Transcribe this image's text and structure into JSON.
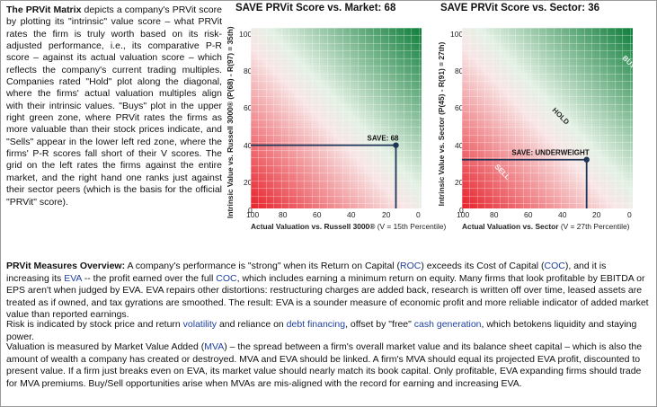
{
  "intro": {
    "heading": "The PRVit Matrix",
    "text": " depicts a company's PRVit score by plotting its \"intrinsic\" value score – what PRVit rates the firm is truly worth based on its risk-adjusted performance, i.e., its comparative P-R score – against its actual valuation score – which reflects the company's current trading multiples. Companies rated \"Hold\" plot along the diagonal, where the firms' actual valuation multiples align with their intrinsic values. \"Buys\" plot in the upper right green zone, where PRVit rates the firms as more valuable than their stock prices indicate, and \"Sells\" appear in the lower left red zone, where the firms' P-R scores fall short of their V scores. The grid on the left rates the firms against the entire market, and the right hand one ranks just against their sector peers (which is the basis for the official \"PRVit\" score)."
  },
  "charts": [
    {
      "title": "SAVE PRVit Score vs. Market: 68",
      "ylabel": "Intrinsic Value vs. Russell 3000® (P(68) - R(97) = 35th)",
      "xlabel_bold": "Actual Valuation vs. Russell 3000®",
      "xlabel_rest": " (V = 15th Percentile)",
      "point_label": "SAVE: 68",
      "zone_labels": [],
      "y_ticks": [
        "100",
        "80",
        "60",
        "40",
        "20",
        "0"
      ],
      "x_ticks": [
        "100",
        "80",
        "60",
        "40",
        "20",
        "0"
      ]
    },
    {
      "title": "SAVE PRVit Score vs. Sector: 36",
      "ylabel": "Intrinsic Value vs. Sector (P(45) - R(91) = 27th)",
      "xlabel_bold": "Actual Valuation vs. Sector",
      "xlabel_rest": " (V = 27th Percentile)",
      "point_label": "SAVE: UNDERWEIGHT",
      "zone_labels": [
        "BUY",
        "HOLD",
        "SELL"
      ],
      "y_ticks": [
        "100",
        "80",
        "60",
        "40",
        "20",
        "0"
      ],
      "x_ticks": [
        "100",
        "80",
        "60",
        "40",
        "20",
        "0"
      ]
    }
  ],
  "chart_data": [
    {
      "type": "scatter",
      "title": "SAVE PRVit Score vs. Market: 68",
      "xlabel": "Actual Valuation vs. Russell 3000® (V = 15th Percentile)",
      "ylabel": "Intrinsic Value vs. Russell 3000® (P(68) - R(97) = 35th)",
      "x_reversed": true,
      "xlim": [
        100,
        0
      ],
      "ylim": [
        0,
        100
      ],
      "points": [
        {
          "x": 15,
          "y": 35,
          "label": "SAVE: 68"
        }
      ]
    },
    {
      "type": "scatter",
      "title": "SAVE PRVit Score vs. Sector: 36",
      "xlabel": "Actual Valuation vs. Sector (V = 27th Percentile)",
      "ylabel": "Intrinsic Value vs. Sector (P(45) - R(91) = 27th)",
      "x_reversed": true,
      "xlim": [
        100,
        0
      ],
      "ylim": [
        0,
        100
      ],
      "points": [
        {
          "x": 27,
          "y": 27,
          "label": "SAVE: UNDERWEIGHT"
        }
      ]
    }
  ],
  "overview": {
    "p1_heading": "PRVit Measures Overview:",
    "p1_a": " A company's performance is \"strong\" when its Return on Capital (",
    "p1_roc": "ROC",
    "p1_b": ") exceeds its Cost of Capital (",
    "p1_coc": "COC",
    "p1_c": "), and it is increasing its ",
    "p1_eva": "EVA",
    "p1_d": " -- the profit earned over the full ",
    "p1_coc2": "COC",
    "p1_e": ", which includes earning a minimum return on equity. Many firms that look profitable by EBITDA or EPS aren't when judged by EVA. EVA repairs other distortions: restructuring charges are added back, research is written off over time, leased assets are treated as if owned, and tax gyrations are smoothed. The result: EVA is a sounder measure of economic profit and more reliable indicator of added market value than reported earnings.",
    "p2_a": "Risk is indicated by stock price and return ",
    "p2_vol": "volatility",
    "p2_b": " and reliance on ",
    "p2_debt": "debt financing",
    "p2_c": ", offset by \"free\" ",
    "p2_cash": "cash generation",
    "p2_d": ", which betokens liquidity and staying power.",
    "p3_a": "Valuation is measured by Market Value Added (",
    "p3_mva": "MVA",
    "p3_b": ") – the spread between a firm's overall market value and its balance sheet capital – which is also the amount of wealth a company has created or destroyed. MVA and EVA should be linked. A firm's MVA should equal its projected EVA profit, discounted to present value. If a firm just breaks even on EVA, its market value should nearly match its book capital. Only profitable, EVA expanding firms should trade for MVA premiums. Buy/Sell opportunities arise when MVAs are mis-aligned with the record for earning and increasing EVA."
  },
  "colors": {
    "link": "#1f3f9f",
    "green": "#0e7d3a",
    "red": "#e8202a",
    "marker": "#1d3557"
  }
}
